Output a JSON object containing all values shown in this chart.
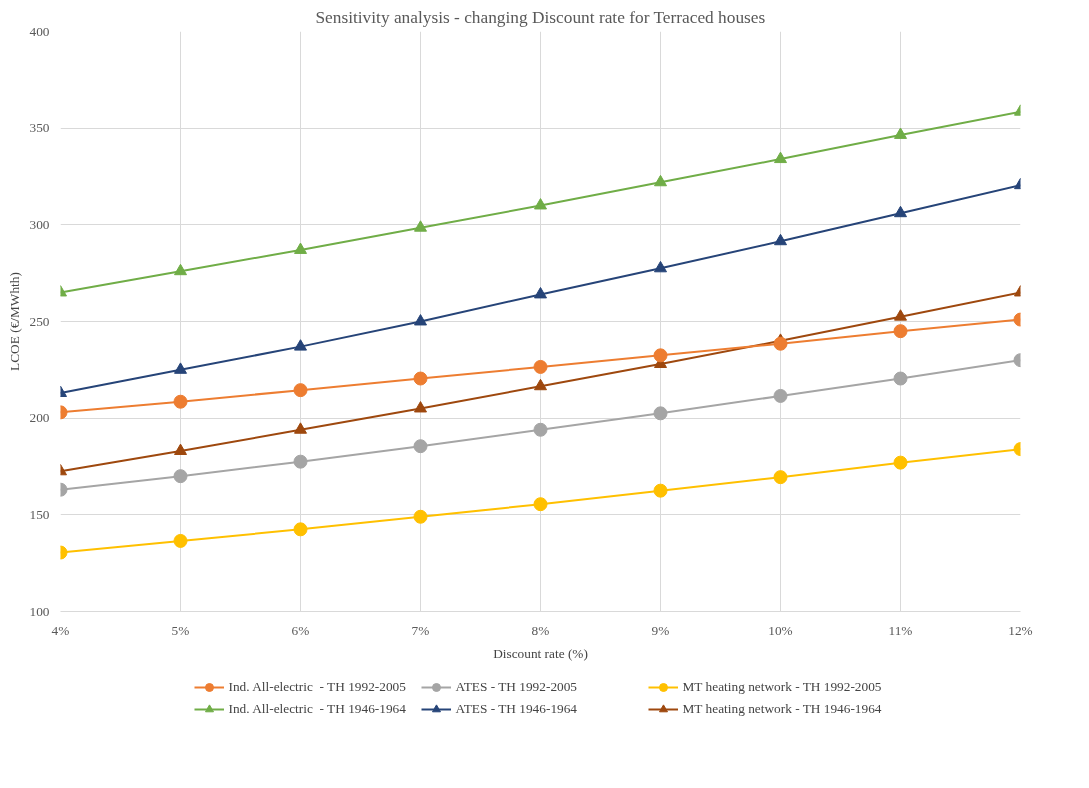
{
  "chart_data": {
    "type": "line",
    "title": "Sensitivity analysis - changing Discount rate for Terraced houses",
    "xlabel": "Discount rate (%)",
    "ylabel": "LCOE (€/MWhth)",
    "x": [
      4,
      5,
      6,
      7,
      8,
      9,
      10,
      11,
      12
    ],
    "xlim": [
      4,
      12
    ],
    "xticks": [
      {
        "value": 4,
        "label": "4%"
      },
      {
        "value": 5,
        "label": "5%"
      },
      {
        "value": 6,
        "label": "6%"
      },
      {
        "value": 7,
        "label": "7%"
      },
      {
        "value": 8,
        "label": "8%"
      },
      {
        "value": 9,
        "label": "9%"
      },
      {
        "value": 10,
        "label": "10%"
      },
      {
        "value": 11,
        "label": "11%"
      },
      {
        "value": 12,
        "label": "12%"
      }
    ],
    "ylim": [
      100,
      400
    ],
    "yticks": [
      100,
      150,
      200,
      250,
      300,
      350,
      400
    ],
    "grid": true,
    "legend": "bottom",
    "series": [
      {
        "name": "Ind. All-electric  - TH 1992-2005",
        "color": "#ed7d31",
        "marker": "circle",
        "values": [
          203,
          208.5,
          214.5,
          220.5,
          226.5,
          232.5,
          238.5,
          245,
          251
        ]
      },
      {
        "name": "ATES - TH 1992-2005",
        "color": "#a5a5a5",
        "marker": "circle",
        "values": [
          163,
          170,
          177.5,
          185.5,
          194,
          202.5,
          211.5,
          220.5,
          230
        ]
      },
      {
        "name": "MT heating network - TH 1992-2005",
        "color": "#ffc000",
        "marker": "circle",
        "values": [
          130.5,
          136.5,
          142.5,
          149,
          155.5,
          162.5,
          169.5,
          177,
          184
        ]
      },
      {
        "name": "Ind. All-electric  - TH 1946-1964",
        "color": "#70ad47",
        "marker": "triangle",
        "values": [
          265,
          276,
          287,
          298.5,
          310,
          322,
          334,
          346.5,
          358.5
        ]
      },
      {
        "name": "ATES - TH 1946-1964",
        "color": "#264478",
        "marker": "triangle",
        "values": [
          213,
          225,
          237,
          250,
          264,
          277.5,
          291.5,
          306,
          320.5
        ]
      },
      {
        "name": "MT heating network - TH 1946-1964",
        "color": "#9e480e",
        "marker": "triangle",
        "values": [
          172.5,
          183,
          194,
          205,
          216.5,
          228,
          240,
          252.5,
          265
        ]
      }
    ]
  }
}
